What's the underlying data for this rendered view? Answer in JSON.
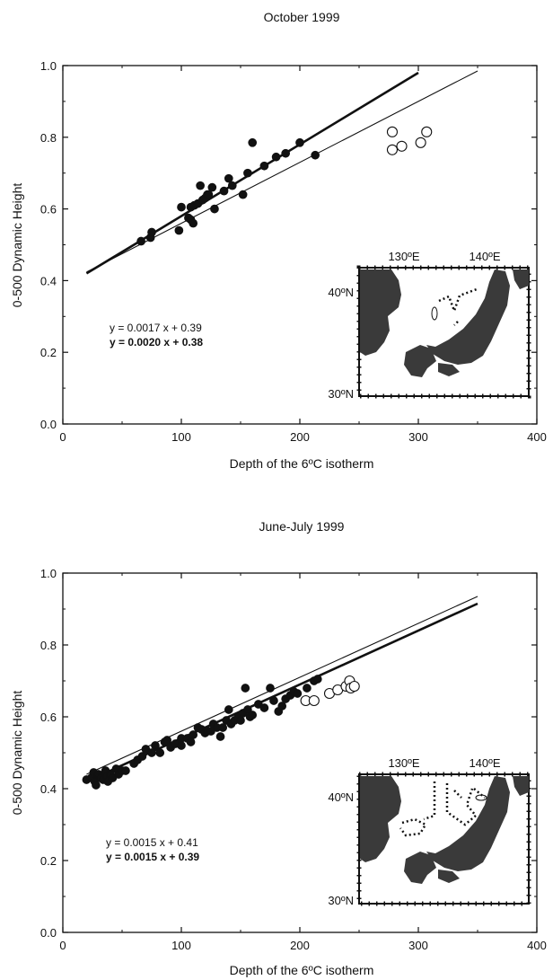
{
  "chart_data": [
    {
      "type": "scatter",
      "title": "October 1999",
      "xlabel": "Depth of the 6ºC isotherm",
      "ylabel": "0-500 Dynamic Height",
      "xlim": [
        0,
        400
      ],
      "ylim": [
        0.0,
        1.0
      ],
      "xticks": [
        0,
        100,
        200,
        300,
        400
      ],
      "yticks": [
        0.0,
        0.2,
        0.4,
        0.6,
        0.8,
        1.0
      ],
      "xtick_labels": [
        "0",
        "100",
        "200",
        "300",
        "400"
      ],
      "ytick_labels": [
        "0.0",
        "0.2",
        "0.4",
        "0.6",
        "0.8",
        "1.0"
      ],
      "grid": false,
      "series": [
        {
          "marker": "filled-circle",
          "points": [
            [
              66,
              0.51
            ],
            [
              74,
              0.52
            ],
            [
              75,
              0.535
            ],
            [
              98,
              0.54
            ],
            [
              100,
              0.605
            ],
            [
              106,
              0.575
            ],
            [
              108,
              0.605
            ],
            [
              108,
              0.57
            ],
            [
              110,
              0.56
            ],
            [
              111,
              0.61
            ],
            [
              114,
              0.615
            ],
            [
              116,
              0.665
            ],
            [
              118,
              0.625
            ],
            [
              120,
              0.63
            ],
            [
              122,
              0.64
            ],
            [
              123,
              0.64
            ],
            [
              126,
              0.66
            ],
            [
              128,
              0.6
            ],
            [
              136,
              0.65
            ],
            [
              140,
              0.685
            ],
            [
              143,
              0.665
            ],
            [
              152,
              0.64
            ],
            [
              156,
              0.7
            ],
            [
              160,
              0.785
            ],
            [
              170,
              0.72
            ],
            [
              180,
              0.745
            ],
            [
              188,
              0.755
            ],
            [
              200,
              0.785
            ],
            [
              213,
              0.75
            ]
          ]
        },
        {
          "marker": "open-circle",
          "points": [
            [
              278,
              0.815
            ],
            [
              278,
              0.765
            ],
            [
              286,
              0.775
            ],
            [
              302,
              0.785
            ],
            [
              307,
              0.815
            ]
          ]
        }
      ],
      "fits": [
        {
          "equation": "y = 0.0017 x + 0.39",
          "slope": 0.0017,
          "intercept": 0.39,
          "x_range": [
            20,
            350
          ],
          "weight": "thin"
        },
        {
          "equation": "y = 0.0020 x + 0.38",
          "slope": 0.002,
          "intercept": 0.38,
          "x_range": [
            20,
            300
          ],
          "weight": "thick"
        }
      ],
      "inset_map": {
        "lon_labels": [
          "130ºE",
          "140ºE"
        ],
        "lat_labels": [
          "40ºN",
          "30ºN"
        ]
      }
    },
    {
      "type": "scatter",
      "title": "June-July 1999",
      "xlabel": "Depth of the 6ºC isotherm",
      "ylabel": "0-500 Dynamic Height",
      "xlim": [
        0,
        400
      ],
      "ylim": [
        0.0,
        1.0
      ],
      "xticks": [
        0,
        100,
        200,
        300,
        400
      ],
      "yticks": [
        0.0,
        0.2,
        0.4,
        0.6,
        0.8,
        1.0
      ],
      "xtick_labels": [
        "0",
        "100",
        "200",
        "300",
        "400"
      ],
      "ytick_labels": [
        "0.0",
        "0.2",
        "0.4",
        "0.6",
        "0.8",
        "1.0"
      ],
      "grid": false,
      "series": [
        {
          "marker": "filled-circle",
          "points": [
            [
              20,
              0.425
            ],
            [
              24,
              0.43
            ],
            [
              26,
              0.445
            ],
            [
              27,
              0.42
            ],
            [
              28,
              0.41
            ],
            [
              30,
              0.44
            ],
            [
              32,
              0.43
            ],
            [
              34,
              0.425
            ],
            [
              36,
              0.45
            ],
            [
              37,
              0.435
            ],
            [
              38,
              0.42
            ],
            [
              40,
              0.44
            ],
            [
              42,
              0.43
            ],
            [
              45,
              0.455
            ],
            [
              47,
              0.44
            ],
            [
              50,
              0.45
            ],
            [
              53,
              0.45
            ],
            [
              60,
              0.47
            ],
            [
              63,
              0.48
            ],
            [
              67,
              0.49
            ],
            [
              70,
              0.51
            ],
            [
              75,
              0.5
            ],
            [
              78,
              0.52
            ],
            [
              82,
              0.5
            ],
            [
              86,
              0.53
            ],
            [
              88,
              0.535
            ],
            [
              91,
              0.515
            ],
            [
              95,
              0.525
            ],
            [
              100,
              0.52
            ],
            [
              100,
              0.54
            ],
            [
              105,
              0.54
            ],
            [
              108,
              0.53
            ],
            [
              110,
              0.55
            ],
            [
              114,
              0.57
            ],
            [
              117,
              0.565
            ],
            [
              120,
              0.555
            ],
            [
              122,
              0.56
            ],
            [
              125,
              0.56
            ],
            [
              127,
              0.58
            ],
            [
              130,
              0.57
            ],
            [
              133,
              0.545
            ],
            [
              135,
              0.57
            ],
            [
              138,
              0.59
            ],
            [
              140,
              0.62
            ],
            [
              142,
              0.58
            ],
            [
              145,
              0.59
            ],
            [
              148,
              0.6
            ],
            [
              150,
              0.59
            ],
            [
              152,
              0.61
            ],
            [
              154,
              0.68
            ],
            [
              156,
              0.62
            ],
            [
              158,
              0.6
            ],
            [
              160,
              0.605
            ],
            [
              165,
              0.635
            ],
            [
              170,
              0.625
            ],
            [
              175,
              0.68
            ],
            [
              178,
              0.645
            ],
            [
              182,
              0.615
            ],
            [
              185,
              0.63
            ],
            [
              188,
              0.65
            ],
            [
              192,
              0.66
            ],
            [
              195,
              0.67
            ],
            [
              198,
              0.665
            ],
            [
              206,
              0.68
            ],
            [
              212,
              0.7
            ],
            [
              215,
              0.705
            ]
          ]
        },
        {
          "marker": "open-circle",
          "points": [
            [
              205,
              0.645
            ],
            [
              212,
              0.645
            ],
            [
              225,
              0.665
            ],
            [
              232,
              0.675
            ],
            [
              239,
              0.685
            ],
            [
              242,
              0.7
            ],
            [
              243,
              0.68
            ],
            [
              246,
              0.685
            ]
          ]
        }
      ],
      "fits": [
        {
          "equation": "y = 0.0015 x + 0.41",
          "slope": 0.0015,
          "intercept": 0.41,
          "x_range": [
            20,
            350
          ],
          "weight": "thin"
        },
        {
          "equation": "y = 0.0015 x + 0.39",
          "slope": 0.0015,
          "intercept": 0.39,
          "x_range": [
            20,
            350
          ],
          "weight": "thick"
        }
      ],
      "inset_map": {
        "lon_labels": [
          "130ºE",
          "140ºE"
        ],
        "lat_labels": [
          "40ºN",
          "30ºN"
        ]
      }
    }
  ]
}
